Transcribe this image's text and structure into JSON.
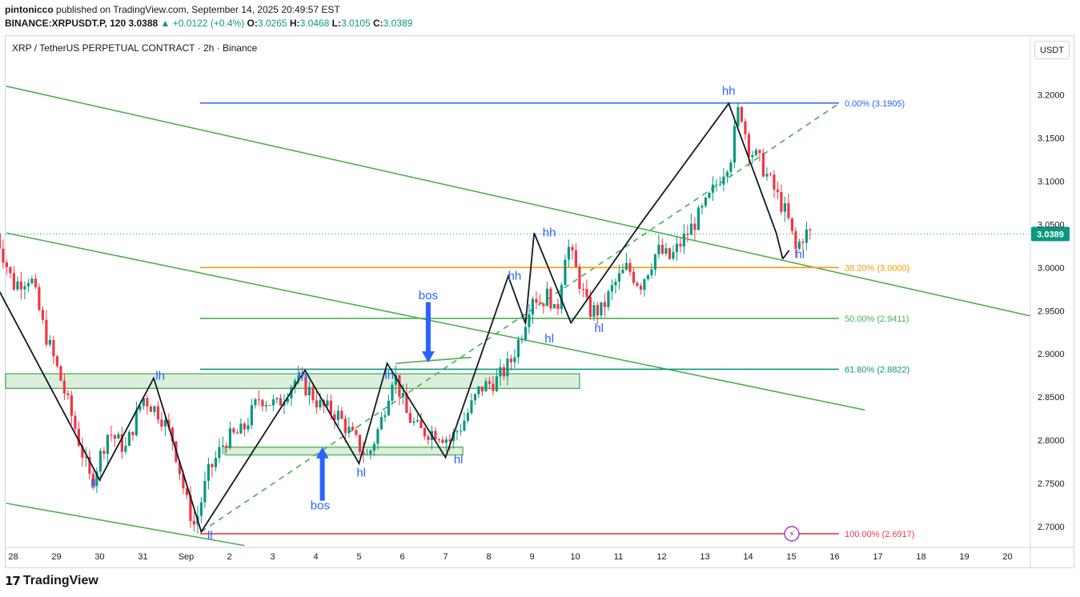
{
  "header": {
    "author": "pintonicco",
    "published_line": "published on TradingView.com, September 14, 2025 20:49:57 EST",
    "symbol": "BINANCE:XRPUSDT.P, 120",
    "last": "3.0388",
    "change": "▲ +0.0122 (+0.4%)",
    "o_label": "O:",
    "o_value": "3.0265",
    "h_label": "H:",
    "h_value": "3.0468",
    "l_label": "L:",
    "l_value": "3.0105",
    "c_label": "C:",
    "c_value": "3.0389"
  },
  "chart_title": "XRP / TetherUS PERPETUAL CONTRACT · 2h · Binance",
  "currency_button": "USDT",
  "brand": "TradingView",
  "chart_data": {
    "type": "candlestick",
    "y_axis": {
      "ticks": [
        "3.2000",
        "3.1500",
        "3.1000",
        "3.0500",
        "3.0000",
        "2.9500",
        "2.9000",
        "2.8500",
        "2.8000",
        "2.7500",
        "2.7000"
      ],
      "range": [
        2.685,
        3.245
      ],
      "last_price_label": "3.0389"
    },
    "x_axis": {
      "ticks": [
        "28",
        "29",
        "30",
        "31",
        "Sep",
        "2",
        "3",
        "4",
        "5",
        "6",
        "7",
        "8",
        "9",
        "10",
        "11",
        "12",
        "13",
        "14",
        "15",
        "16",
        "17",
        "18",
        "19",
        "20"
      ],
      "day_index": [
        -4,
        -3,
        -2,
        -1,
        0,
        1,
        2,
        3,
        4,
        5,
        6,
        7,
        8,
        9,
        10,
        11,
        12,
        13,
        14,
        15,
        16,
        17,
        18,
        19
      ]
    },
    "price_path": [
      [
        -4.4,
        3.04
      ],
      [
        -4.0,
        2.98
      ],
      [
        -3.6,
        2.99
      ],
      [
        -3.3,
        2.93
      ],
      [
        -2.9,
        2.87
      ],
      [
        -2.6,
        2.82
      ],
      [
        -2.2,
        2.75
      ],
      [
        -1.8,
        2.81
      ],
      [
        -1.4,
        2.79
      ],
      [
        -1.0,
        2.85
      ],
      [
        -0.6,
        2.83
      ],
      [
        -0.3,
        2.8
      ],
      [
        0.0,
        2.73
      ],
      [
        0.2,
        2.7
      ],
      [
        0.5,
        2.76
      ],
      [
        0.9,
        2.8
      ],
      [
        1.3,
        2.81
      ],
      [
        1.7,
        2.85
      ],
      [
        2.1,
        2.84
      ],
      [
        2.5,
        2.87
      ],
      [
        2.8,
        2.86
      ],
      [
        3.1,
        2.84
      ],
      [
        3.5,
        2.83
      ],
      [
        3.9,
        2.8
      ],
      [
        4.2,
        2.78
      ],
      [
        4.5,
        2.82
      ],
      [
        4.8,
        2.88
      ],
      [
        5.1,
        2.83
      ],
      [
        5.4,
        2.81
      ],
      [
        5.8,
        2.81
      ],
      [
        6.1,
        2.8
      ],
      [
        6.4,
        2.82
      ],
      [
        6.8,
        2.86
      ],
      [
        7.2,
        2.87
      ],
      [
        7.5,
        2.89
      ],
      [
        7.8,
        2.93
      ],
      [
        8.0,
        2.97
      ],
      [
        8.2,
        2.96
      ],
      [
        8.4,
        2.97
      ],
      [
        8.55,
        2.94
      ],
      [
        8.8,
        3.03
      ],
      [
        9.0,
        3.0
      ],
      [
        9.3,
        2.95
      ],
      [
        9.6,
        2.95
      ],
      [
        9.9,
        2.98
      ],
      [
        10.2,
        3.0
      ],
      [
        10.5,
        2.98
      ],
      [
        10.9,
        3.02
      ],
      [
        11.2,
        3.01
      ],
      [
        11.6,
        3.04
      ],
      [
        12.0,
        3.07
      ],
      [
        12.3,
        3.1
      ],
      [
        12.6,
        3.13
      ],
      [
        12.8,
        3.19
      ],
      [
        13.0,
        3.14
      ],
      [
        13.3,
        3.12
      ],
      [
        13.6,
        3.09
      ],
      [
        13.9,
        3.06
      ],
      [
        14.1,
        3.02
      ],
      [
        14.3,
        3.04
      ],
      [
        14.5,
        3.038
      ]
    ],
    "horizontal_levels": [
      {
        "label": "0.00% (3.1905)",
        "value": 3.1905,
        "color": "#2962ff"
      },
      {
        "label": "38.20% (3.0000)",
        "value": 3.0,
        "color": "#ff9800"
      },
      {
        "label": "50.00% (2.9411)",
        "value": 2.9411,
        "color": "#4caf50"
      },
      {
        "label": "61.80% (2.8822)",
        "value": 2.8822,
        "color": "#089981"
      },
      {
        "label": "100.00% (2.6917)",
        "value": 2.6917,
        "color": "#f23645"
      }
    ],
    "swing_labels": [
      {
        "text": "ll",
        "day": -2.15,
        "price": 2.745
      },
      {
        "text": "lh",
        "day": -0.6,
        "price": 2.87
      },
      {
        "text": "ll",
        "day": 0.55,
        "price": 2.685
      },
      {
        "text": "lh",
        "day": 2.7,
        "price": 2.869
      },
      {
        "text": "hl",
        "day": 4.05,
        "price": 2.758
      },
      {
        "text": "lh",
        "day": 4.7,
        "price": 2.871
      },
      {
        "text": "hl",
        "day": 6.3,
        "price": 2.773
      },
      {
        "text": "hh",
        "day": 7.6,
        "price": 2.986
      },
      {
        "text": "hh",
        "day": 8.4,
        "price": 3.036
      },
      {
        "text": "hl",
        "day": 8.4,
        "price": 2.913
      },
      {
        "text": "hl",
        "day": 9.55,
        "price": 2.925
      },
      {
        "text": "hh",
        "day": 12.55,
        "price": 3.2
      },
      {
        "text": "hl",
        "day": 14.2,
        "price": 3.011
      }
    ],
    "annotations": [
      {
        "text": "bos",
        "day": 6.2,
        "price": 2.96
      },
      {
        "text": "bos",
        "day": 3.3,
        "price": 2.7
      },
      {
        "text": "bos-arrow-down",
        "day": 6.1,
        "price": 2.94
      },
      {
        "text": "bos-arrow-up",
        "day": 3.3,
        "price": 2.79
      }
    ]
  },
  "colors": {
    "up": "#089981",
    "down": "#f23645",
    "trend": "#4caf50",
    "zigzag": "#131722",
    "bos": "#2962ff"
  }
}
